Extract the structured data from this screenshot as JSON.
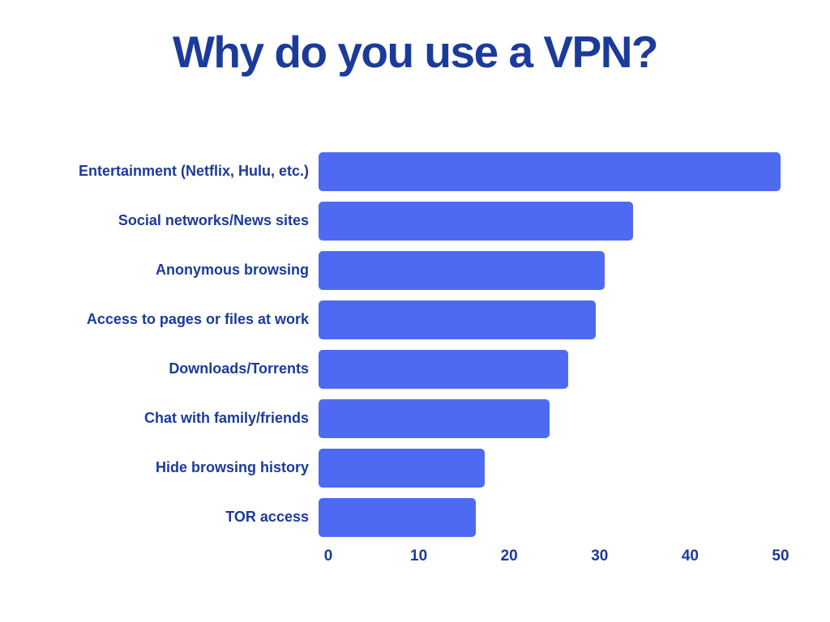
{
  "chart_data": {
    "type": "bar",
    "orientation": "horizontal",
    "title": "Why do you use a VPN?",
    "categories": [
      "Entertainment (Netflix, Hulu, etc.)",
      "Social networks/News sites",
      "Anonymous browsing",
      "Access to pages or files at work",
      "Downloads/Torrents",
      "Chat with family/friends",
      "Hide browsing history",
      "TOR access"
    ],
    "values": [
      50,
      34,
      31,
      30,
      27,
      25,
      18,
      17
    ],
    "xlim": [
      0,
      50
    ],
    "x_ticks": [
      0,
      10,
      20,
      30,
      40,
      50
    ],
    "xlabel": "",
    "ylabel": "",
    "grid": false,
    "legend": false,
    "colors": {
      "bar": "#4e6af3",
      "title": "#1b3b9b",
      "labels": "#1b3b9b",
      "ticks": "#1b3b9b",
      "background": "#ffffff"
    }
  }
}
